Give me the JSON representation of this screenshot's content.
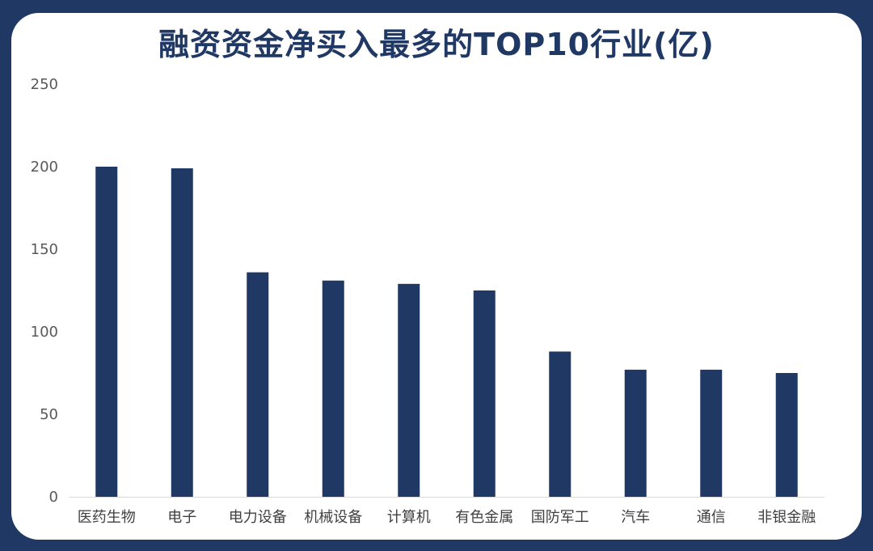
{
  "chart_data": {
    "type": "bar",
    "title": "融资资金净买入最多的TOP10行业(亿)",
    "categories": [
      "医药生物",
      "电子",
      "电力设备",
      "机械设备",
      "计算机",
      "有色金属",
      "国防军工",
      "汽车",
      "通信",
      "非银金融"
    ],
    "values": [
      200,
      199,
      136,
      131,
      129,
      125,
      88,
      77,
      77,
      75
    ],
    "ylim": [
      0,
      250
    ],
    "yticks": [
      0,
      50,
      100,
      150,
      200,
      250
    ],
    "xlabel": "",
    "ylabel": "",
    "grid": false,
    "bar_color": "#1f3864"
  },
  "colors": {
    "background": "#1f3864",
    "panel": "#ffffff",
    "title": "#1f3864",
    "bar": "#1f3864"
  }
}
